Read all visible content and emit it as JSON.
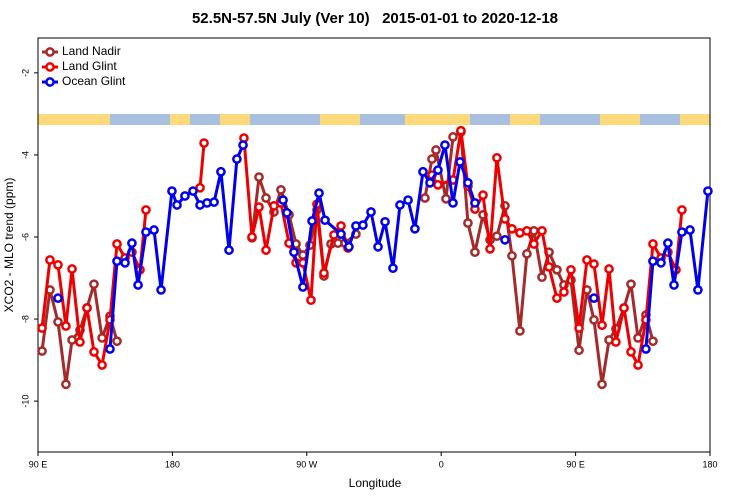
{
  "chart_data": {
    "type": "line",
    "title": "52.5N-57.5N July (Ver 10)   2015-01-01 to 2020-12-18",
    "xlabel": "Longitude",
    "ylabel": "XCO2 - MLO trend (ppm)",
    "xlim": [
      90,
      540
    ],
    "ylim": [
      -11.24,
      -1.15
    ],
    "xticks": [
      {
        "value": 90,
        "label": "90 E"
      },
      180,
      {
        "value": 270,
        "label": "90 W"
      },
      {
        "value": 360,
        "label": "0"
      },
      {
        "value": 450,
        "label": "90 E"
      },
      {
        "value": 540,
        "label": "180"
      }
    ],
    "yticks": [
      -10,
      -8,
      -6,
      -4,
      -2
    ],
    "legend": "top-left",
    "series": [
      {
        "name": "Land Nadir",
        "color": "#a52a2a",
        "x": [
          92.7,
          98.0,
          103.4,
          108.7,
          112.8,
          118.1,
          122.8,
          127.5,
          132.9,
          138.2,
          142.9,
          null,
          233.3,
          238.0,
          242.7,
          248.0,
          252.7,
          258.1,
          262.8,
          267.4,
          272.1,
          276.8,
          281.5,
          286.2,
          290.9,
          295.6,
          302.9,
          null,
          349.1,
          353.8,
          356.5,
          363.2,
          367.9,
          373.2,
          377.9,
          382.6,
          388.0,
          392.7,
          397.3,
          402.7,
          407.4,
          412.7,
          417.4,
          422.1,
          427.5,
          432.2,
          437.5,
          442.2,
          446.9,
          452.3,
          457.6,
          462.3,
          467.7,
          472.4,
          477.0,
          482.4,
          487.1,
          491.8,
          497.1,
          501.8
        ],
        "values": [
          -8.78,
          -7.29,
          -8.07,
          -9.59,
          -8.51,
          -8.27,
          -7.73,
          -7.15,
          -8.46,
          -7.93,
          -8.54,
          null,
          -6.02,
          -4.54,
          -5.05,
          -5.39,
          -4.85,
          -5.46,
          -6.17,
          -6.44,
          -6.2,
          -5.34,
          -6.95,
          -6.17,
          -6.15,
          -6.15,
          -5.93,
          null,
          -5.05,
          -4.1,
          -3.88,
          -5.07,
          -3.56,
          -3.44,
          -5.66,
          -6.37,
          -5.46,
          -6.07,
          -5.98,
          -5.24,
          -6.46,
          -8.29,
          -6.41,
          -5.85,
          -6.98,
          -6.37,
          -6.8,
          -7.17,
          -7.05,
          -8.76,
          -7.29,
          -8.02,
          -9.59,
          -8.51,
          -8.24,
          -7.73,
          -7.15,
          -8.46,
          -7.9,
          -8.54
        ]
      },
      {
        "name": "Land Glint",
        "color": "#ee0000",
        "x": [
          92.7,
          98.0,
          103.4,
          108.7,
          112.8,
          118.1,
          122.8,
          127.5,
          132.9,
          138.2,
          142.9,
          148.3,
          152.9,
          158.3,
          162.3,
          null,
          198.5,
          201.2,
          null,
          227.9,
          233.3,
          238.0,
          242.7,
          248.0,
          252.7,
          258.1,
          262.8,
          267.4,
          272.8,
          276.8,
          281.5,
          288.2,
          292.9,
          297.6,
          null,
          353.8,
          357.8,
          367.9,
          373.2,
          377.9,
          382.6,
          388.0,
          392.7,
          397.3,
          402.7,
          407.4,
          412.7,
          417.4,
          422.1,
          427.5,
          432.2,
          437.5,
          442.2,
          446.9,
          452.3,
          457.6,
          462.3,
          467.7,
          472.4,
          477.0,
          482.4,
          487.1,
          491.8,
          497.1,
          501.8,
          507.2,
          511.8,
          517.2,
          521.2
        ],
        "values": [
          -8.22,
          -6.56,
          -6.68,
          -8.17,
          -6.78,
          -8.56,
          -7.73,
          -8.8,
          -9.12,
          -8.02,
          -6.17,
          -6.51,
          -6.37,
          -6.8,
          -5.34,
          null,
          -4.8,
          -3.71,
          null,
          -3.59,
          -6.0,
          -5.27,
          -6.32,
          -5.24,
          -5.17,
          -6.15,
          -6.63,
          -6.63,
          -7.54,
          -5.2,
          -6.88,
          -5.95,
          -5.73,
          -6.27,
          null,
          -4.49,
          -4.73,
          -4.61,
          -3.41,
          -4.76,
          -5.32,
          -4.98,
          -6.29,
          -4.07,
          -5.56,
          -5.8,
          -5.9,
          -5.85,
          -6.17,
          -5.85,
          -6.73,
          -7.49,
          -7.34,
          -6.8,
          -8.22,
          -6.56,
          -6.66,
          -8.15,
          -6.78,
          -8.56,
          -7.73,
          -8.8,
          -9.12,
          -8.02,
          -6.17,
          -6.51,
          -6.37,
          -6.8,
          -5.34
        ]
      },
      {
        "name": "Ocean Glint",
        "color": "#0000ee",
        "x": [
          103.4,
          null,
          138.2,
          142.9,
          148.3,
          152.9,
          157.0,
          162.3,
          167.7,
          172.4,
          179.7,
          183.1,
          188.4,
          193.8,
          198.5,
          203.2,
          207.9,
          212.5,
          217.9,
          223.2,
          227.3,
          null,
          254.1,
          256.7,
          261.4,
          267.4,
          273.5,
          278.2,
          282.2,
          292.9,
          298.2,
          302.9,
          307.6,
          313.0,
          317.7,
          322.4,
          327.7,
          332.4,
          337.8,
          342.4,
          347.8,
          352.5,
          357.8,
          362.5,
          367.9,
          372.6,
          377.9,
          382.6,
          null,
          402.7,
          null,
          462.3,
          null,
          497.1,
          501.8,
          507.2,
          511.8,
          515.9,
          521.2,
          526.6,
          531.9,
          538.6
        ],
        "values": [
          -7.49,
          null,
          -8.73,
          -6.59,
          -6.63,
          -6.15,
          -7.17,
          -5.88,
          -5.83,
          -7.29,
          -4.88,
          -5.22,
          -5.0,
          -4.88,
          -5.22,
          -5.17,
          -5.15,
          -4.41,
          -6.32,
          -4.1,
          -3.76,
          null,
          -5.1,
          -5.41,
          -6.37,
          -7.22,
          -5.61,
          -4.93,
          -5.59,
          -5.93,
          -6.24,
          -5.73,
          -5.71,
          -5.39,
          -6.24,
          -5.63,
          -6.76,
          -5.22,
          -5.1,
          -5.8,
          -4.41,
          -4.68,
          -4.37,
          -3.76,
          -5.17,
          -4.17,
          -4.68,
          -5.17,
          null,
          -6.07,
          null,
          -7.49,
          null,
          -8.73,
          -6.59,
          -6.63,
          -6.15,
          -7.17,
          -5.88,
          -5.83,
          -7.29,
          -4.88
        ]
      }
    ]
  }
}
